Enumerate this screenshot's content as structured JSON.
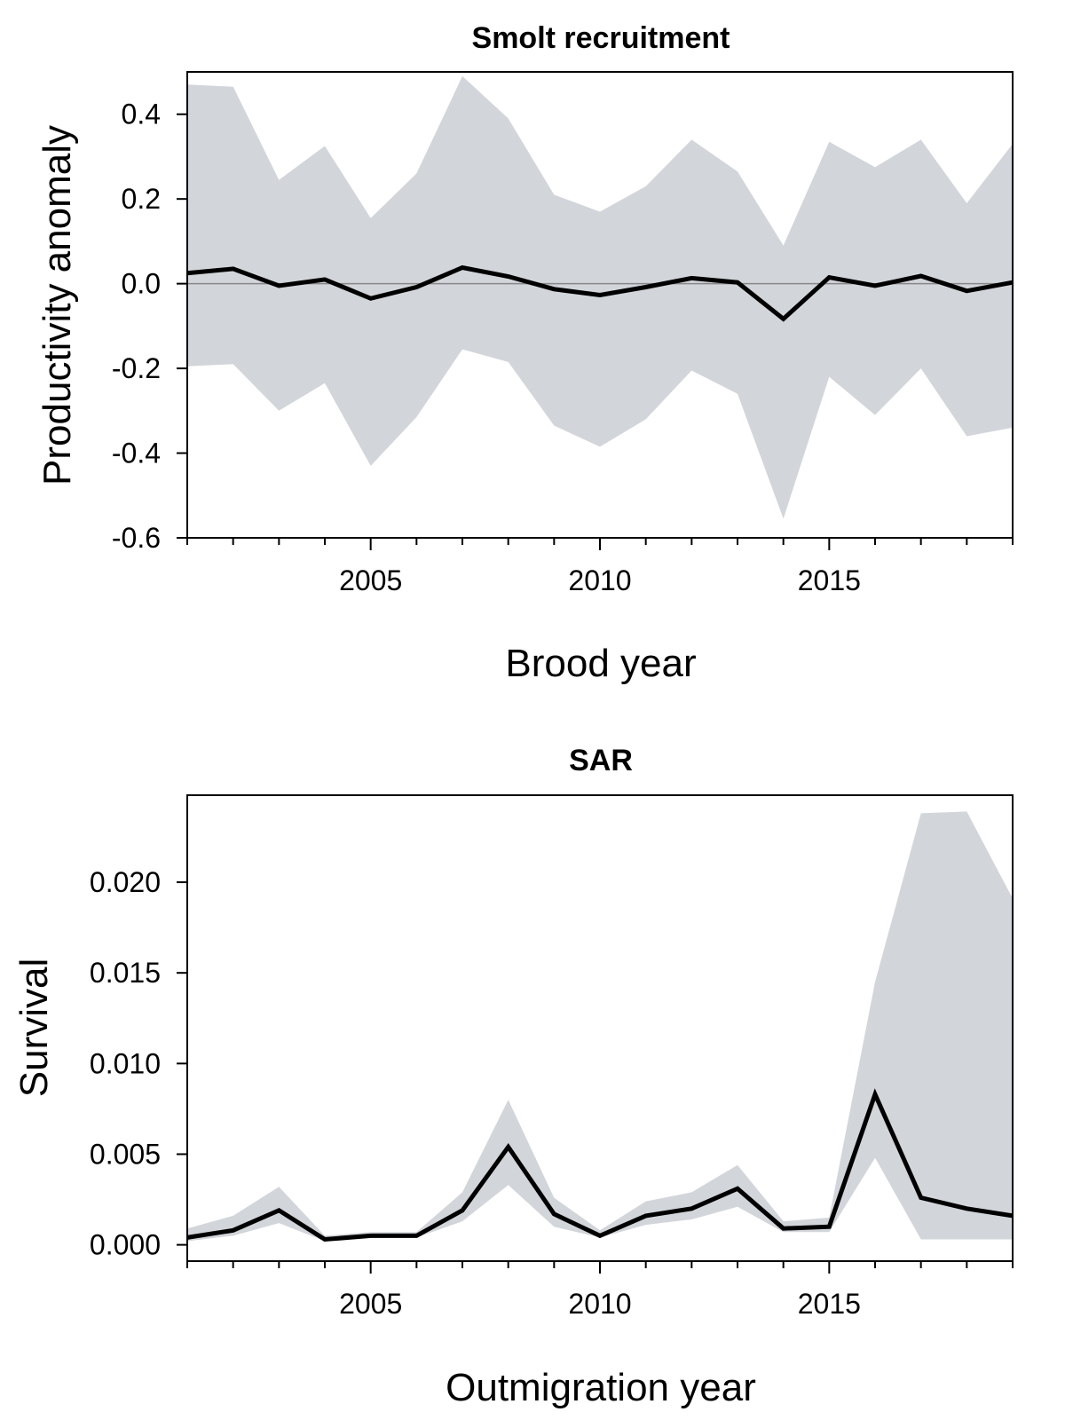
{
  "chart_data": [
    {
      "type": "area",
      "title": "Smolt recruitment",
      "xlabel": "Brood year",
      "ylabel": "Productivity anomaly",
      "xlim": [
        2001,
        2019
      ],
      "ylim": [
        -0.6,
        0.5
      ],
      "x_ticks": [
        2005,
        2010,
        2015
      ],
      "y_ticks": [
        -0.6,
        -0.4,
        -0.2,
        0.0,
        0.2,
        0.4
      ],
      "y_tick_labels": [
        "-0.6",
        "-0.4",
        "-0.2",
        "0.0",
        "0.2",
        "0.4"
      ],
      "reference_line": 0.0,
      "x": [
        2001,
        2002,
        2003,
        2004,
        2005,
        2006,
        2007,
        2008,
        2009,
        2010,
        2011,
        2012,
        2013,
        2014,
        2015,
        2016,
        2017,
        2018,
        2019
      ],
      "series": [
        {
          "values": [
            0.025,
            0.035,
            -0.005,
            0.01,
            -0.035,
            -0.008,
            0.038,
            0.017,
            -0.013,
            -0.027,
            -0.008,
            0.013,
            0.003,
            -0.083,
            0.015,
            -0.005,
            0.018,
            -0.017,
            0.003
          ]
        }
      ],
      "band": {
        "upper": [
          0.47,
          0.465,
          0.245,
          0.325,
          0.155,
          0.26,
          0.49,
          0.39,
          0.21,
          0.17,
          0.23,
          0.34,
          0.265,
          0.09,
          0.335,
          0.275,
          0.34,
          0.19,
          0.33
        ],
        "lower": [
          -0.195,
          -0.19,
          -0.3,
          -0.235,
          -0.43,
          -0.315,
          -0.155,
          -0.185,
          -0.335,
          -0.385,
          -0.32,
          -0.205,
          -0.26,
          -0.555,
          -0.22,
          -0.31,
          -0.2,
          -0.36,
          -0.34
        ]
      },
      "grid": false,
      "colors": {
        "band": "#d2d5da",
        "line": "#000000",
        "ref": "#888888"
      }
    },
    {
      "type": "area",
      "title": "SAR",
      "xlabel": "Outmigration year",
      "ylabel": "Survival",
      "xlim": [
        2001,
        2019
      ],
      "ylim": [
        -0.0009,
        0.0248
      ],
      "x_ticks": [
        2005,
        2010,
        2015
      ],
      "y_ticks": [
        0.0,
        0.005,
        0.01,
        0.015,
        0.02
      ],
      "y_tick_labels": [
        "0.000",
        "0.005",
        "0.010",
        "0.015",
        "0.020"
      ],
      "x": [
        2001,
        2002,
        2003,
        2004,
        2005,
        2006,
        2007,
        2008,
        2009,
        2010,
        2011,
        2012,
        2013,
        2014,
        2015,
        2016,
        2017,
        2018,
        2019
      ],
      "series": [
        {
          "values": [
            0.0004,
            0.0008,
            0.0019,
            0.0003,
            0.0005,
            0.0005,
            0.0019,
            0.0054,
            0.0017,
            0.0005,
            0.0016,
            0.002,
            0.0031,
            0.0009,
            0.001,
            0.0083,
            0.0026,
            0.002,
            0.0016
          ]
        }
      ],
      "band": {
        "upper": [
          0.0009,
          0.0016,
          0.0032,
          0.0005,
          0.0007,
          0.0007,
          0.0029,
          0.008,
          0.0026,
          0.0008,
          0.0024,
          0.0029,
          0.0044,
          0.0013,
          0.0015,
          0.0145,
          0.0238,
          0.0239,
          0.0191
        ],
        "lower": [
          0.0002,
          0.0005,
          0.0012,
          0.0002,
          0.0004,
          0.0004,
          0.0013,
          0.0033,
          0.001,
          0.0004,
          0.0011,
          0.0014,
          0.0021,
          0.0007,
          0.0007,
          0.0048,
          0.0003,
          0.0003,
          0.0003
        ]
      },
      "grid": false,
      "colors": {
        "band": "#d2d5da",
        "line": "#000000"
      }
    }
  ]
}
